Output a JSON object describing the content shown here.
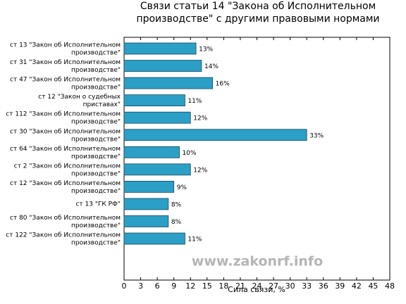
{
  "chart_data": {
    "type": "barh",
    "title": "Связи статьи 14 \"Закона об Исполнительном\nпроизводстве\" с другими правовыми нормами",
    "xlabel": "Сила связи, %",
    "annotation": "www.zakonrf.info",
    "categories": [
      "ст 13 \"Закон об Исполнительном\nпроизводстве\"",
      "ст 31 \"Закон об Исполнительном\nпроизводстве\"",
      "ст 47 \"Закон об Исполнительном\nпроизводстве\"",
      "ст 12 \"Закон о судебных\nприставах\"",
      "ст 112 \"Закон об Исполнительном\nпроизводстве\"",
      "ст 30 \"Закон об Исполнительном\nпроизводстве\"",
      "ст 64 \"Закон об Исполнительном\nпроизводстве\"",
      "ст 2 \"Закон об Исполнительном\nпроизводстве\"",
      "ст 12 \"Закон об Исполнительном\nпроизводстве\"",
      "ст 13 \"ГК РФ\"",
      "ст 80 \"Закон об Исполнительном\nпроизводстве\"",
      "ст 122 \"Закон об Исполнительном\nпроизводстве\""
    ],
    "values": [
      13,
      14,
      16,
      11,
      12,
      33,
      10,
      12,
      9,
      8,
      8,
      11
    ],
    "value_labels": [
      "13%",
      "14%",
      "16%",
      "11%",
      "12%",
      "33%",
      "10%",
      "12%",
      "9%",
      "8%",
      "8%",
      "11%"
    ],
    "color": "#2b9fc6",
    "xlim": [
      0,
      48
    ],
    "xticks": [
      0,
      3,
      6,
      9,
      12,
      15,
      18,
      21,
      24,
      27,
      30,
      33,
      36,
      39,
      42,
      45,
      48
    ]
  }
}
